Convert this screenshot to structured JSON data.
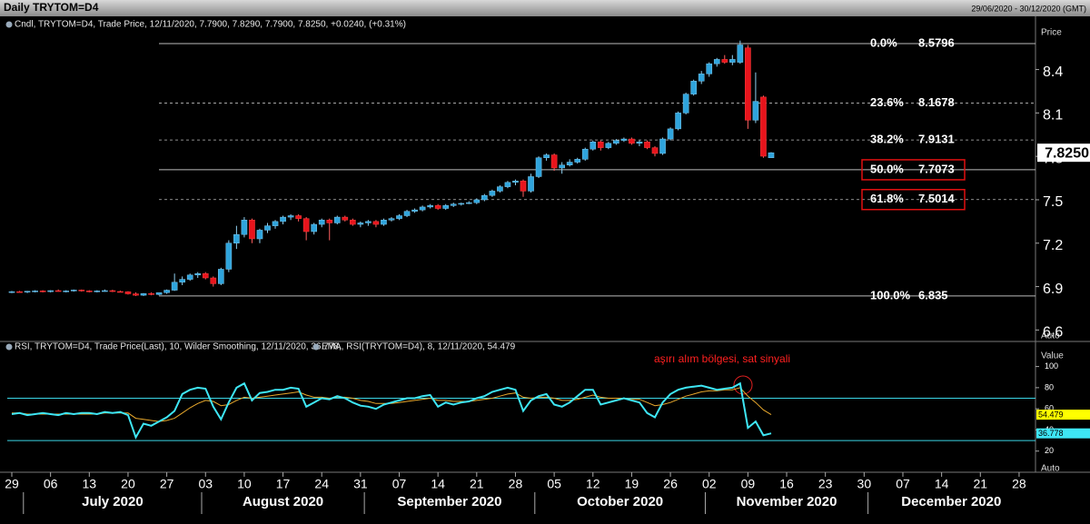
{
  "header": {
    "title": "Daily  TRYTOM=D4",
    "range": "29/06/2020 - 30/12/2020 (GMT)"
  },
  "chart_data": [
    {
      "type": "candlestick",
      "legend": "Cndl, TRYTOM=D4, Trade Price, 12/11/2020, 7.7900, 7.8290, 7.7900, 7.8250, +0.0240, (+0.31%)",
      "axis_title": "Price",
      "scale_mode": "Auto",
      "up_color": "#2fa4dc",
      "down_color": "#e8141c",
      "x": [
        "2020-06-29",
        "2020-06-30",
        "2020-07-01",
        "2020-07-02",
        "2020-07-03",
        "2020-07-06",
        "2020-07-07",
        "2020-07-08",
        "2020-07-09",
        "2020-07-10",
        "2020-07-13",
        "2020-07-14",
        "2020-07-15",
        "2020-07-16",
        "2020-07-17",
        "2020-07-20",
        "2020-07-21",
        "2020-07-22",
        "2020-07-23",
        "2020-07-24",
        "2020-07-27",
        "2020-07-28",
        "2020-07-29",
        "2020-07-30",
        "2020-07-31",
        "2020-08-03",
        "2020-08-04",
        "2020-08-05",
        "2020-08-06",
        "2020-08-07",
        "2020-08-10",
        "2020-08-11",
        "2020-08-12",
        "2020-08-13",
        "2020-08-14",
        "2020-08-17",
        "2020-08-18",
        "2020-08-19",
        "2020-08-20",
        "2020-08-21",
        "2020-08-24",
        "2020-08-25",
        "2020-08-26",
        "2020-08-27",
        "2020-08-28",
        "2020-08-31",
        "2020-09-01",
        "2020-09-02",
        "2020-09-03",
        "2020-09-04",
        "2020-09-07",
        "2020-09-08",
        "2020-09-09",
        "2020-09-10",
        "2020-09-11",
        "2020-09-14",
        "2020-09-15",
        "2020-09-16",
        "2020-09-17",
        "2020-09-18",
        "2020-09-21",
        "2020-09-22",
        "2020-09-23",
        "2020-09-24",
        "2020-09-25",
        "2020-09-28",
        "2020-09-29",
        "2020-09-30",
        "2020-10-01",
        "2020-10-02",
        "2020-10-05",
        "2020-10-06",
        "2020-10-07",
        "2020-10-08",
        "2020-10-09",
        "2020-10-12",
        "2020-10-13",
        "2020-10-14",
        "2020-10-15",
        "2020-10-16",
        "2020-10-19",
        "2020-10-20",
        "2020-10-21",
        "2020-10-22",
        "2020-10-23",
        "2020-10-26",
        "2020-10-27",
        "2020-10-28",
        "2020-10-29",
        "2020-10-30",
        "2020-11-02",
        "2020-11-03",
        "2020-11-04",
        "2020-11-05",
        "2020-11-06",
        "2020-11-09",
        "2020-11-10",
        "2020-11-11",
        "2020-11-12"
      ],
      "ohlc": [
        [
          6.86,
          6.87,
          6.855,
          6.865
        ],
        [
          6.865,
          6.87,
          6.86,
          6.862
        ],
        [
          6.862,
          6.87,
          6.855,
          6.868
        ],
        [
          6.868,
          6.875,
          6.86,
          6.87
        ],
        [
          6.87,
          6.875,
          6.86,
          6.865
        ],
        [
          6.865,
          6.875,
          6.86,
          6.872
        ],
        [
          6.872,
          6.88,
          6.865,
          6.868
        ],
        [
          6.868,
          6.875,
          6.86,
          6.87
        ],
        [
          6.87,
          6.88,
          6.865,
          6.876
        ],
        [
          6.876,
          6.88,
          6.865,
          6.87
        ],
        [
          6.87,
          6.875,
          6.86,
          6.865
        ],
        [
          6.865,
          6.875,
          6.86,
          6.87
        ],
        [
          6.87,
          6.88,
          6.865,
          6.872
        ],
        [
          6.872,
          6.878,
          6.862,
          6.866
        ],
        [
          6.866,
          6.872,
          6.86,
          6.864
        ],
        [
          6.864,
          6.868,
          6.845,
          6.85
        ],
        [
          6.85,
          6.86,
          6.835,
          6.84
        ],
        [
          6.84,
          6.855,
          6.835,
          6.852
        ],
        [
          6.852,
          6.86,
          6.84,
          6.845
        ],
        [
          6.845,
          6.86,
          6.84,
          6.858
        ],
        [
          6.858,
          6.88,
          6.85,
          6.875
        ],
        [
          6.875,
          6.99,
          6.87,
          6.93
        ],
        [
          6.93,
          6.97,
          6.91,
          6.95
        ],
        [
          6.95,
          6.99,
          6.94,
          6.98
        ],
        [
          6.98,
          7.0,
          6.96,
          6.99
        ],
        [
          6.99,
          7.0,
          6.95,
          6.96
        ],
        [
          6.96,
          6.97,
          6.9,
          6.92
        ],
        [
          6.92,
          7.03,
          6.91,
          7.02
        ],
        [
          7.02,
          7.22,
          7.0,
          7.2
        ],
        [
          7.2,
          7.32,
          7.16,
          7.26
        ],
        [
          7.26,
          7.38,
          7.24,
          7.36
        ],
        [
          7.36,
          7.37,
          7.2,
          7.23
        ],
        [
          7.23,
          7.3,
          7.2,
          7.29
        ],
        [
          7.29,
          7.34,
          7.27,
          7.32
        ],
        [
          7.32,
          7.36,
          7.3,
          7.35
        ],
        [
          7.35,
          7.39,
          7.33,
          7.38
        ],
        [
          7.38,
          7.4,
          7.36,
          7.39
        ],
        [
          7.39,
          7.4,
          7.35,
          7.37
        ],
        [
          7.37,
          7.38,
          7.22,
          7.28
        ],
        [
          7.28,
          7.34,
          7.26,
          7.33
        ],
        [
          7.33,
          7.37,
          7.31,
          7.36
        ],
        [
          7.36,
          7.37,
          7.22,
          7.34
        ],
        [
          7.34,
          7.39,
          7.33,
          7.38
        ],
        [
          7.38,
          7.39,
          7.35,
          7.36
        ],
        [
          7.36,
          7.37,
          7.32,
          7.33
        ],
        [
          7.33,
          7.35,
          7.31,
          7.34
        ],
        [
          7.34,
          7.36,
          7.32,
          7.35
        ],
        [
          7.35,
          7.36,
          7.31,
          7.33
        ],
        [
          7.33,
          7.37,
          7.32,
          7.36
        ],
        [
          7.36,
          7.38,
          7.35,
          7.37
        ],
        [
          7.37,
          7.4,
          7.36,
          7.39
        ],
        [
          7.39,
          7.43,
          7.38,
          7.42
        ],
        [
          7.42,
          7.44,
          7.41,
          7.43
        ],
        [
          7.43,
          7.46,
          7.42,
          7.45
        ],
        [
          7.45,
          7.47,
          7.44,
          7.46
        ],
        [
          7.46,
          7.47,
          7.43,
          7.44
        ],
        [
          7.44,
          7.47,
          7.43,
          7.46
        ],
        [
          7.46,
          7.48,
          7.45,
          7.47
        ],
        [
          7.47,
          7.48,
          7.46,
          7.475
        ],
        [
          7.475,
          7.49,
          7.47,
          7.48
        ],
        [
          7.48,
          7.51,
          7.47,
          7.5
        ],
        [
          7.5,
          7.54,
          7.49,
          7.53
        ],
        [
          7.53,
          7.57,
          7.52,
          7.56
        ],
        [
          7.56,
          7.6,
          7.55,
          7.59
        ],
        [
          7.59,
          7.63,
          7.58,
          7.62
        ],
        [
          7.62,
          7.64,
          7.6,
          7.63
        ],
        [
          7.63,
          7.64,
          7.52,
          7.56
        ],
        [
          7.56,
          7.68,
          7.55,
          7.66
        ],
        [
          7.66,
          7.8,
          7.65,
          7.79
        ],
        [
          7.79,
          7.82,
          7.77,
          7.81
        ],
        [
          7.81,
          7.82,
          7.7,
          7.72
        ],
        [
          7.72,
          7.76,
          7.68,
          7.74
        ],
        [
          7.74,
          7.78,
          7.73,
          7.76
        ],
        [
          7.76,
          7.79,
          7.75,
          7.78
        ],
        [
          7.78,
          7.86,
          7.77,
          7.85
        ],
        [
          7.85,
          7.91,
          7.84,
          7.9
        ],
        [
          7.9,
          7.91,
          7.84,
          7.86
        ],
        [
          7.86,
          7.9,
          7.85,
          7.89
        ],
        [
          7.89,
          7.92,
          7.88,
          7.91
        ],
        [
          7.91,
          7.93,
          7.9,
          7.92
        ],
        [
          7.92,
          7.93,
          7.88,
          7.89
        ],
        [
          7.89,
          7.91,
          7.87,
          7.9
        ],
        [
          7.9,
          7.91,
          7.85,
          7.86
        ],
        [
          7.86,
          7.87,
          7.8,
          7.82
        ],
        [
          7.82,
          7.93,
          7.81,
          7.92
        ],
        [
          7.92,
          8.0,
          7.91,
          7.99
        ],
        [
          7.99,
          8.11,
          7.98,
          8.1
        ],
        [
          8.1,
          8.24,
          8.09,
          8.23
        ],
        [
          8.23,
          8.33,
          8.22,
          8.32
        ],
        [
          8.32,
          8.39,
          8.3,
          8.37
        ],
        [
          8.37,
          8.45,
          8.35,
          8.44
        ],
        [
          8.44,
          8.48,
          8.42,
          8.47
        ],
        [
          8.47,
          8.5,
          8.44,
          8.45
        ],
        [
          8.45,
          8.5,
          8.43,
          8.47
        ],
        [
          8.45,
          8.6,
          8.44,
          8.57
        ],
        [
          8.55,
          8.57,
          7.99,
          8.05
        ],
        [
          8.05,
          8.38,
          8.03,
          8.18
        ],
        [
          8.21,
          8.22,
          7.79,
          7.801
        ],
        [
          7.79,
          7.829,
          7.79,
          7.825
        ]
      ],
      "last_price": {
        "value": 7.825,
        "label": "7.8250"
      },
      "ylim": [
        6.527,
        8.755
      ],
      "yticks": [
        6.6,
        6.9,
        7.2,
        7.5,
        7.8,
        8.1,
        8.4
      ],
      "fib_levels": [
        {
          "label": "0.0%",
          "value": 8.5796,
          "style": "solid",
          "boxed": false
        },
        {
          "label": "23.6%",
          "value": 8.1678,
          "style": "dashed",
          "boxed": false
        },
        {
          "label": "38.2%",
          "value": 7.9131,
          "style": "dashed",
          "boxed": false
        },
        {
          "label": "50.0%",
          "value": 7.7073,
          "style": "solid",
          "boxed": true
        },
        {
          "label": "61.8%",
          "value": 7.5014,
          "style": "dashed",
          "boxed": true
        },
        {
          "label": "100.0%",
          "value": 6.835,
          "style": "solid",
          "boxed": false
        }
      ],
      "xlim": [
        "2020-06-29",
        "2020-12-30"
      ],
      "xticks": [
        {
          "value": "2020-06-29",
          "label": "29"
        },
        {
          "value": "2020-07-06",
          "label": "06"
        },
        {
          "value": "2020-07-13",
          "label": "13"
        },
        {
          "value": "2020-07-20",
          "label": "20"
        },
        {
          "value": "2020-07-27",
          "label": "27"
        },
        {
          "value": "2020-08-03",
          "label": "03"
        },
        {
          "value": "2020-08-10",
          "label": "10"
        },
        {
          "value": "2020-08-17",
          "label": "17"
        },
        {
          "value": "2020-08-24",
          "label": "24"
        },
        {
          "value": "2020-08-31",
          "label": "31"
        },
        {
          "value": "2020-09-07",
          "label": "07"
        },
        {
          "value": "2020-09-14",
          "label": "14"
        },
        {
          "value": "2020-09-21",
          "label": "21"
        },
        {
          "value": "2020-09-28",
          "label": "28"
        },
        {
          "value": "2020-10-05",
          "label": "05"
        },
        {
          "value": "2020-10-12",
          "label": "12"
        },
        {
          "value": "2020-10-19",
          "label": "19"
        },
        {
          "value": "2020-10-26",
          "label": "26"
        },
        {
          "value": "2020-11-02",
          "label": "02"
        },
        {
          "value": "2020-11-09",
          "label": "09"
        },
        {
          "value": "2020-11-16",
          "label": "16"
        },
        {
          "value": "2020-11-23",
          "label": "23"
        },
        {
          "value": "2020-11-30",
          "label": "30"
        },
        {
          "value": "2020-12-07",
          "label": "07"
        },
        {
          "value": "2020-12-14",
          "label": "14"
        },
        {
          "value": "2020-12-21",
          "label": "21"
        },
        {
          "value": "2020-12-28",
          "label": "28"
        }
      ],
      "months": [
        {
          "value": "2020-07-01",
          "label": "July 2020"
        },
        {
          "value": "2020-08-01",
          "label": "August 2020"
        },
        {
          "value": "2020-09-01",
          "label": "September 2020"
        },
        {
          "value": "2020-10-01",
          "label": "October 2020"
        },
        {
          "value": "2020-11-01",
          "label": "November 2020"
        },
        {
          "value": "2020-12-01",
          "label": "December 2020"
        }
      ]
    },
    {
      "type": "line",
      "legend": [
        "RSI, TRYTOM=D4, Trade Price(Last),  10, Wilder Smoothing, 12/11/2020, 36.778, ",
        "EMA, RSI(TRYTOM=D4),  8, 12/11/2020, 54.479"
      ],
      "axis_title": "Value",
      "scale_mode": "Auto",
      "annotation": "aşırı alım bölgesi, sat sinyali",
      "ylim": [
        0,
        122
      ],
      "yticks": [
        20,
        40,
        60,
        80,
        100
      ],
      "levels": [
        70,
        30
      ],
      "level_color": "#3ad6e6",
      "series": [
        {
          "name": "RSI",
          "color": "#3ee6f4",
          "label_color": "#3ee6f4",
          "values": [
            55,
            56,
            54,
            55,
            56,
            55,
            54,
            56,
            55,
            56,
            56,
            55,
            57,
            56,
            57,
            54,
            33,
            46,
            44,
            48,
            52,
            58,
            74,
            78,
            80,
            79,
            62,
            50,
            66,
            80,
            84,
            68,
            75,
            76,
            78,
            78,
            80,
            79,
            62,
            66,
            70,
            69,
            72,
            70,
            66,
            63,
            62,
            60,
            64,
            66,
            68,
            70,
            70,
            72,
            73,
            62,
            66,
            64,
            66,
            67,
            70,
            72,
            76,
            78,
            80,
            78,
            58,
            68,
            72,
            74,
            64,
            62,
            66,
            72,
            78,
            78,
            64,
            66,
            68,
            70,
            68,
            66,
            56,
            52,
            66,
            74,
            78,
            80,
            81,
            82,
            80,
            78,
            79,
            80,
            84,
            42,
            48,
            35,
            36.778
          ]
        },
        {
          "name": "EMA",
          "color": "#e8a82c",
          "label_color": "#ffff00",
          "values": [
            56,
            56,
            55,
            55,
            55,
            55,
            55,
            55,
            55,
            55,
            55,
            55,
            56,
            56,
            56,
            56,
            51,
            50,
            49,
            48,
            49,
            51,
            56,
            61,
            65,
            68,
            67,
            63,
            64,
            68,
            71,
            70,
            71,
            72,
            73,
            74,
            75,
            76,
            73,
            71,
            71,
            70,
            71,
            71,
            70,
            68,
            67,
            65,
            65,
            65,
            66,
            67,
            68,
            69,
            70,
            68,
            68,
            67,
            67,
            67,
            68,
            69,
            70,
            72,
            74,
            75,
            71,
            70,
            71,
            71,
            70,
            68,
            68,
            69,
            71,
            73,
            71,
            70,
            70,
            70,
            69,
            69,
            66,
            63,
            64,
            66,
            69,
            72,
            74,
            76,
            77,
            77,
            78,
            78,
            80,
            72,
            66,
            59,
            54.479
          ]
        }
      ]
    }
  ]
}
